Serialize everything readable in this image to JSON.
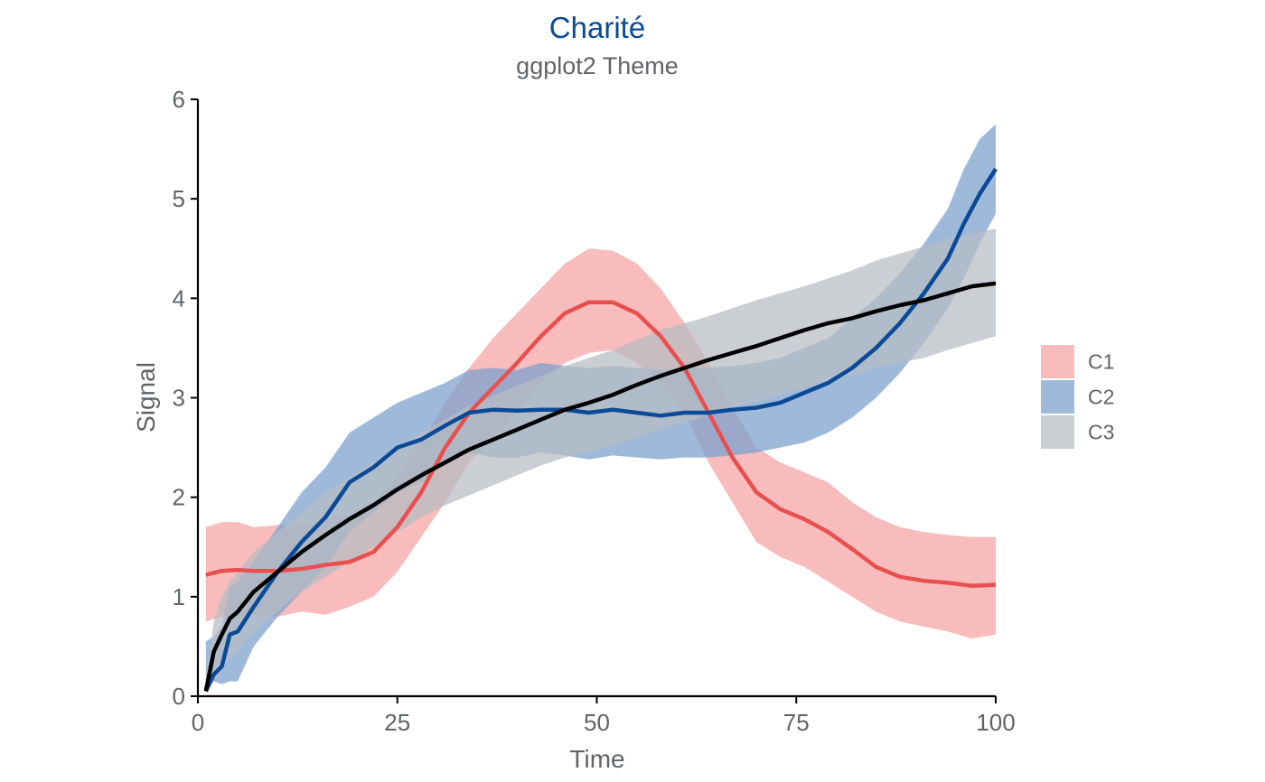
{
  "chart_data": {
    "type": "area",
    "title": "Charité",
    "subtitle": "ggplot2 Theme",
    "xlabel": "Time",
    "ylabel": "Signal",
    "xlim": [
      0,
      100
    ],
    "ylim": [
      0,
      6
    ],
    "xticks": [
      0,
      25,
      50,
      75,
      100
    ],
    "yticks": [
      0,
      1,
      2,
      3,
      4,
      5,
      6
    ],
    "xtick_labels": [
      "0",
      "25",
      "50",
      "75",
      "100"
    ],
    "ytick_labels": [
      "0",
      "1",
      "2",
      "3",
      "4",
      "5",
      "6"
    ],
    "grid": false,
    "legend_position": "right",
    "colors": {
      "title": "#0A4A96",
      "text": "#5F6469",
      "axis": "#000000"
    },
    "series": [
      {
        "name": "C1",
        "line_color": "#E8504F",
        "band_color": "#F4A6A4",
        "band_opacity": 0.75,
        "x": [
          1,
          3,
          5,
          7,
          10,
          13,
          16,
          19,
          22,
          25,
          28,
          31,
          34,
          37,
          40,
          43,
          46,
          49,
          52,
          55,
          58,
          61,
          64,
          67,
          70,
          73,
          76,
          79,
          82,
          85,
          88,
          91,
          94,
          97,
          100
        ],
        "y": [
          1.22,
          1.26,
          1.27,
          1.26,
          1.26,
          1.28,
          1.32,
          1.35,
          1.45,
          1.7,
          2.05,
          2.5,
          2.85,
          3.1,
          3.35,
          3.62,
          3.85,
          3.96,
          3.96,
          3.85,
          3.62,
          3.3,
          2.85,
          2.4,
          2.05,
          1.88,
          1.78,
          1.65,
          1.48,
          1.3,
          1.2,
          1.16,
          1.14,
          1.11,
          1.12
        ],
        "lower": [
          0.75,
          0.8,
          0.8,
          0.82,
          0.8,
          0.85,
          0.82,
          0.9,
          1.0,
          1.25,
          1.6,
          1.95,
          2.35,
          2.6,
          2.85,
          3.15,
          3.35,
          3.45,
          3.48,
          3.35,
          3.15,
          2.85,
          2.35,
          1.95,
          1.55,
          1.4,
          1.3,
          1.15,
          1.0,
          0.85,
          0.75,
          0.7,
          0.65,
          0.58,
          0.62
        ],
        "upper": [
          1.7,
          1.75,
          1.75,
          1.7,
          1.72,
          1.72,
          1.78,
          1.82,
          1.95,
          2.2,
          2.55,
          2.95,
          3.3,
          3.6,
          3.85,
          4.1,
          4.35,
          4.5,
          4.48,
          4.35,
          4.1,
          3.75,
          3.35,
          2.9,
          2.5,
          2.35,
          2.25,
          2.15,
          1.95,
          1.8,
          1.7,
          1.65,
          1.62,
          1.6,
          1.6
        ]
      },
      {
        "name": "C2",
        "line_color": "#0A4A96",
        "band_color": "#7EA2CE",
        "band_opacity": 0.75,
        "x": [
          1,
          2,
          3,
          4,
          5,
          7,
          10,
          13,
          16,
          19,
          22,
          25,
          28,
          31,
          34,
          37,
          40,
          43,
          46,
          49,
          52,
          55,
          58,
          61,
          64,
          67,
          70,
          73,
          76,
          79,
          82,
          85,
          88,
          91,
          94,
          96,
          98,
          100
        ],
        "y": [
          0.05,
          0.22,
          0.3,
          0.62,
          0.65,
          0.9,
          1.25,
          1.55,
          1.8,
          2.15,
          2.3,
          2.5,
          2.58,
          2.72,
          2.85,
          2.88,
          2.87,
          2.88,
          2.88,
          2.85,
          2.88,
          2.85,
          2.82,
          2.85,
          2.85,
          2.88,
          2.9,
          2.95,
          3.05,
          3.15,
          3.3,
          3.5,
          3.75,
          4.05,
          4.4,
          4.75,
          5.05,
          5.3
        ],
        "lower": [
          0.1,
          0.15,
          0.12,
          0.15,
          0.15,
          0.5,
          0.8,
          1.05,
          1.3,
          1.65,
          1.85,
          2.05,
          2.15,
          2.35,
          2.45,
          2.4,
          2.4,
          2.45,
          2.42,
          2.38,
          2.42,
          2.4,
          2.38,
          2.4,
          2.4,
          2.42,
          2.45,
          2.5,
          2.55,
          2.65,
          2.8,
          3.0,
          3.25,
          3.55,
          3.9,
          4.2,
          4.55,
          4.85
        ],
        "upper": [
          0.55,
          0.6,
          0.7,
          1.1,
          1.15,
          1.35,
          1.7,
          2.05,
          2.3,
          2.65,
          2.8,
          2.95,
          3.05,
          3.15,
          3.28,
          3.3,
          3.28,
          3.35,
          3.32,
          3.3,
          3.32,
          3.3,
          3.28,
          3.3,
          3.3,
          3.32,
          3.35,
          3.4,
          3.5,
          3.6,
          3.8,
          4.0,
          4.25,
          4.55,
          4.9,
          5.3,
          5.6,
          5.75
        ]
      },
      {
        "name": "C3",
        "line_color": "#000000",
        "band_color": "#B7BDC2",
        "band_opacity": 0.72,
        "x": [
          1,
          2,
          3,
          4,
          5,
          7,
          10,
          13,
          16,
          19,
          22,
          25,
          28,
          31,
          34,
          37,
          40,
          43,
          46,
          49,
          52,
          55,
          58,
          61,
          64,
          67,
          70,
          73,
          76,
          79,
          82,
          85,
          88,
          91,
          94,
          97,
          100
        ],
        "y": [
          0.05,
          0.45,
          0.62,
          0.78,
          0.85,
          1.05,
          1.25,
          1.45,
          1.62,
          1.78,
          1.92,
          2.08,
          2.22,
          2.35,
          2.48,
          2.58,
          2.68,
          2.78,
          2.88,
          2.95,
          3.03,
          3.13,
          3.22,
          3.3,
          3.38,
          3.45,
          3.52,
          3.6,
          3.68,
          3.75,
          3.8,
          3.87,
          3.93,
          3.98,
          4.05,
          4.12,
          4.15
        ],
        "lower": [
          0.05,
          0.15,
          0.25,
          0.38,
          0.45,
          0.65,
          0.85,
          1.05,
          1.2,
          1.35,
          1.5,
          1.65,
          1.8,
          1.92,
          2.02,
          2.12,
          2.22,
          2.32,
          2.4,
          2.45,
          2.52,
          2.6,
          2.68,
          2.75,
          2.82,
          2.9,
          2.96,
          3.03,
          3.1,
          3.17,
          3.23,
          3.3,
          3.35,
          3.4,
          3.48,
          3.55,
          3.62
        ],
        "upper": [
          0.2,
          0.75,
          1.0,
          1.15,
          1.25,
          1.45,
          1.65,
          1.85,
          2.05,
          2.2,
          2.35,
          2.5,
          2.65,
          2.78,
          2.92,
          3.02,
          3.12,
          3.22,
          3.32,
          3.4,
          3.48,
          3.58,
          3.68,
          3.75,
          3.82,
          3.9,
          3.98,
          4.05,
          4.12,
          4.2,
          4.28,
          4.38,
          4.45,
          4.52,
          4.6,
          4.65,
          4.7
        ]
      }
    ]
  }
}
